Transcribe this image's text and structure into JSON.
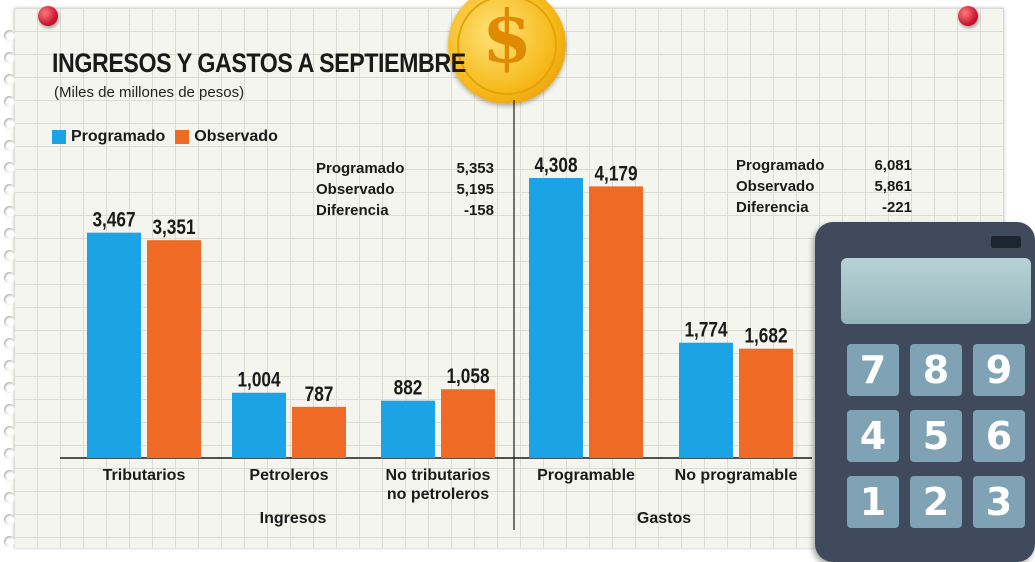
{
  "header": {
    "title": "INGRESOS Y GASTOS A SEPTIEMBRE",
    "subtitle": "(Miles de millones de pesos)"
  },
  "legend": {
    "programado": "Programado",
    "observado": "Observado"
  },
  "colors": {
    "programado": "#1ba3e6",
    "observado": "#ef6a25"
  },
  "stats_ingresos": {
    "rows": [
      {
        "label": "Programado",
        "value": "5,353"
      },
      {
        "label": "Observado",
        "value": "5,195"
      },
      {
        "label": "Diferencia",
        "value": "-158"
      }
    ]
  },
  "stats_gastos": {
    "rows": [
      {
        "label": "Programado",
        "value": "6,081"
      },
      {
        "label": "Observado",
        "value": "5,861"
      },
      {
        "label": "Diferencia",
        "value": "-221"
      }
    ]
  },
  "coin": {
    "symbol": "$"
  },
  "calculator": {
    "keys": [
      "7",
      "8",
      "9",
      "4",
      "5",
      "6",
      "1",
      "2",
      "3"
    ]
  },
  "chart_data": {
    "type": "bar",
    "title": "INGRESOS Y GASTOS A SEPTIEMBRE",
    "ylabel": "Miles de millones de pesos",
    "ylim": [
      0,
      5000
    ],
    "categories": [
      {
        "label": [
          "Tributarios"
        ],
        "group": "Ingresos"
      },
      {
        "label": [
          "Petroleros"
        ],
        "group": "Ingresos"
      },
      {
        "label": [
          "No tributarios",
          "no petroleros"
        ],
        "group": "Ingresos"
      },
      {
        "label": [
          "Programable"
        ],
        "group": "Gastos"
      },
      {
        "label": [
          "No programable"
        ],
        "group": "Gastos"
      }
    ],
    "groups": [
      "Ingresos",
      "Gastos"
    ],
    "series": [
      {
        "name": "Programado",
        "values": [
          3467,
          1004,
          882,
          4308,
          1774
        ],
        "labels": [
          "3,467",
          "1,004",
          "882",
          "4,308",
          "1,774"
        ]
      },
      {
        "name": "Observado",
        "values": [
          3351,
          787,
          1058,
          4179,
          1682
        ],
        "labels": [
          "3,351",
          "787",
          "1,058",
          "4,179",
          "1,682"
        ]
      }
    ]
  }
}
